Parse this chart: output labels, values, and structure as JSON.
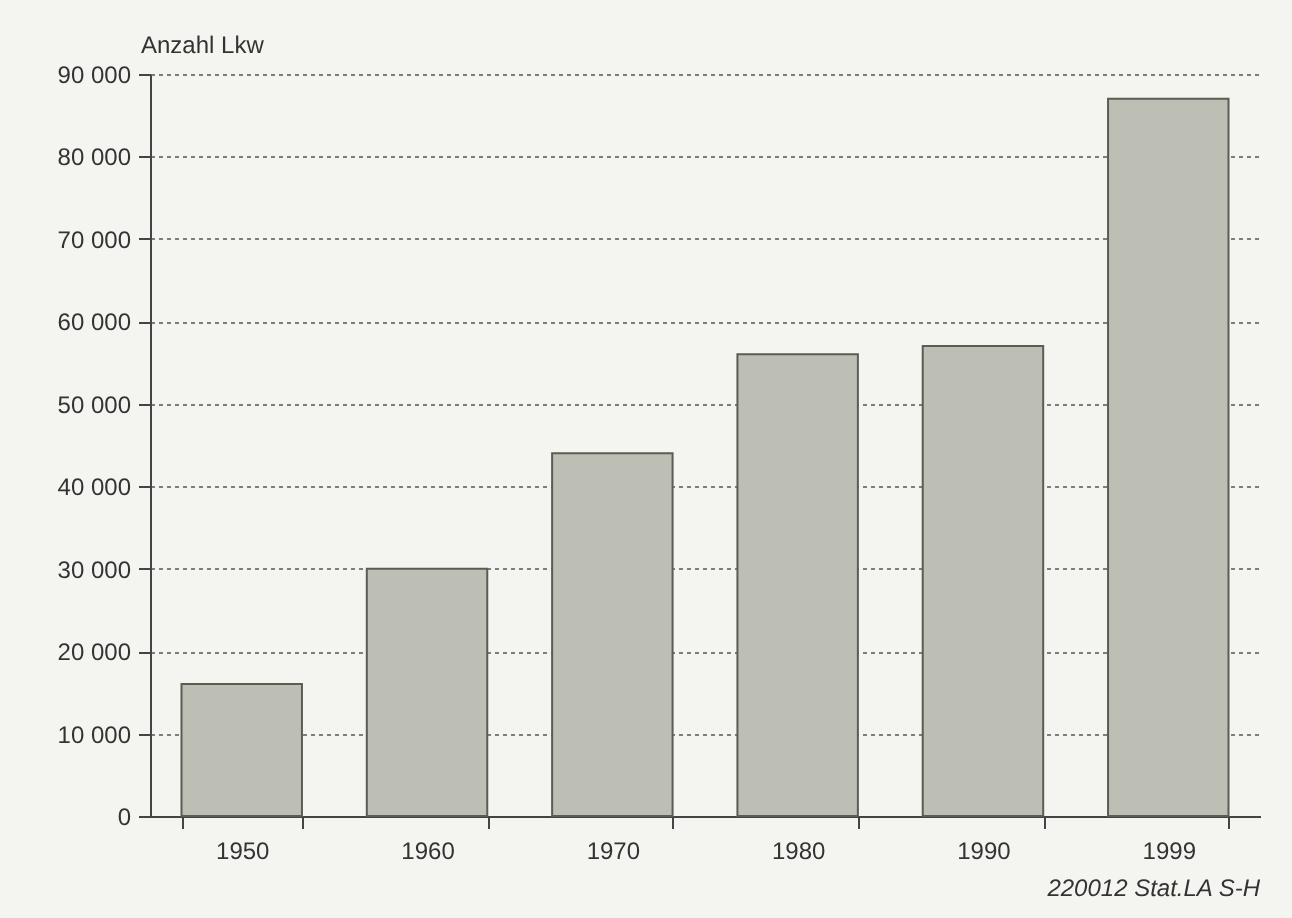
{
  "chart_data": {
    "type": "bar",
    "ylabel": "Anzahl Lkw",
    "categories": [
      "1950",
      "1960",
      "1970",
      "1980",
      "1990",
      "1999"
    ],
    "values": [
      16000,
      30000,
      44000,
      56000,
      57000,
      87000
    ],
    "color": "#bebfb4",
    "ylim": [
      0,
      90000
    ],
    "yticks": [
      0,
      {
        "value": 10000,
        "label": "10 000"
      },
      {
        "value": 20000,
        "label": "20 000"
      },
      {
        "value": 30000,
        "label": "30 000"
      },
      {
        "value": 40000,
        "label": "40 000"
      },
      {
        "value": 50000,
        "label": "50 000"
      },
      {
        "value": 60000,
        "label": "60 000"
      },
      {
        "value": 70000,
        "label": "70 000"
      },
      {
        "value": 80000,
        "label": "80 000"
      },
      {
        "value": 90000,
        "label": "90 000"
      }
    ],
    "grid": "y",
    "annotations": [
      "220012 Stat.LA S-H"
    ]
  }
}
